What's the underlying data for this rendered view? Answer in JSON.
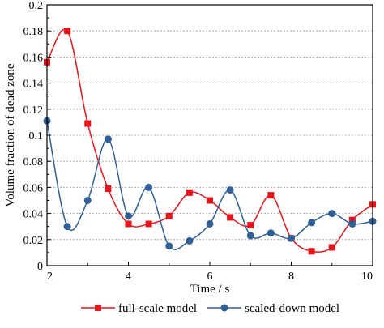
{
  "chart_data": {
    "type": "line",
    "title": "",
    "xlabel": "Time / s",
    "ylabel": "Volume fraction of dead zone",
    "xlim": [
      2,
      10
    ],
    "ylim": [
      0,
      0.2
    ],
    "xticks": [
      2,
      4,
      6,
      8,
      10
    ],
    "xtick_labels": [
      "2",
      "4",
      "6",
      "8",
      "10"
    ],
    "yticks": [
      0,
      0.02,
      0.04,
      0.06,
      0.08,
      0.1,
      0.12,
      0.14,
      0.16,
      0.18,
      0.2
    ],
    "ytick_labels": [
      "0",
      "0.02",
      "0.04",
      "0.06",
      "0.08",
      "0.1",
      "0.12",
      "0.14",
      "0.16",
      "0.18",
      "0.2"
    ],
    "grid": "horizontal dashed",
    "legend_position": "bottom",
    "series": [
      {
        "name": "full-scale model",
        "color": "#e8141b",
        "marker": "square",
        "x": [
          2,
          2.5,
          3,
          3.5,
          4,
          4.5,
          5,
          5.5,
          6,
          6.5,
          7,
          7.5,
          8,
          8.5,
          9,
          9.5,
          10
        ],
        "y": [
          0.156,
          0.18,
          0.109,
          0.059,
          0.032,
          0.032,
          0.038,
          0.056,
          0.05,
          0.037,
          0.031,
          0.054,
          0.021,
          0.011,
          0.014,
          0.035,
          0.047
        ]
      },
      {
        "name": "scaled-down model",
        "color": "#2f5f96",
        "marker": "circle",
        "x": [
          2,
          2.5,
          3,
          3.5,
          4,
          4.5,
          5,
          5.5,
          6,
          6.5,
          7,
          7.5,
          8,
          8.5,
          9,
          9.5,
          10
        ],
        "y": [
          0.111,
          0.03,
          0.05,
          0.097,
          0.038,
          0.06,
          0.015,
          0.019,
          0.032,
          0.058,
          0.023,
          0.025,
          0.021,
          0.033,
          0.04,
          0.032,
          0.034
        ]
      }
    ]
  }
}
